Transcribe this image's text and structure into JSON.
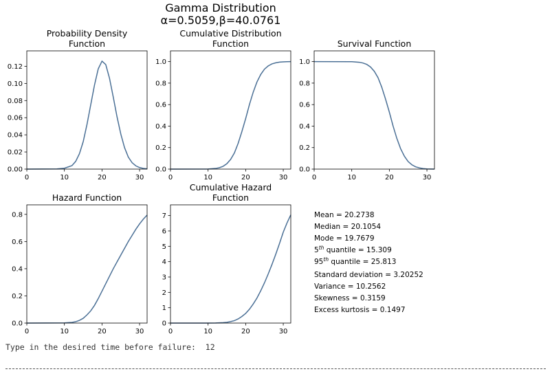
{
  "figure_title_line1": "Gamma Distribution",
  "figure_title_line2": "α=0.5059,β=40.0761",
  "line_color": "#4a6f95",
  "chart_data": [
    {
      "type": "line",
      "title": "Probability Density Function",
      "title_lines": [
        "Probability Density",
        "Function"
      ],
      "xlim": [
        0,
        32
      ],
      "ylim": [
        0,
        0.138
      ],
      "xticks": [
        0,
        10,
        20,
        30
      ],
      "yticks": [
        0.0,
        0.02,
        0.04,
        0.06,
        0.08,
        0.1,
        0.12
      ],
      "ytick_labels": [
        "0.00",
        "0.02",
        "0.04",
        "0.06",
        "0.08",
        "0.10",
        "0.12"
      ],
      "x": [
        0,
        8,
        10,
        12,
        13,
        14,
        15,
        16,
        17,
        18,
        19,
        20,
        21,
        22,
        23,
        24,
        25,
        26,
        27,
        28,
        29,
        30,
        31,
        32
      ],
      "y": [
        0,
        0.0002,
        0.001,
        0.004,
        0.009,
        0.018,
        0.032,
        0.052,
        0.075,
        0.098,
        0.117,
        0.126,
        0.122,
        0.106,
        0.084,
        0.061,
        0.041,
        0.025,
        0.014,
        0.0075,
        0.0038,
        0.0018,
        0.0008,
        0.0003
      ]
    },
    {
      "type": "line",
      "title": "Cumulative Distribution Function",
      "title_lines": [
        "Cumulative Distribution",
        "Function"
      ],
      "xlim": [
        0,
        32
      ],
      "ylim": [
        0,
        1.1
      ],
      "xticks": [
        0,
        10,
        20,
        30
      ],
      "yticks": [
        0.0,
        0.2,
        0.4,
        0.6,
        0.8,
        1.0
      ],
      "ytick_labels": [
        "0.0",
        "0.2",
        "0.4",
        "0.6",
        "0.8",
        "1.0"
      ],
      "x": [
        0,
        10,
        12,
        13,
        14,
        15,
        16,
        17,
        18,
        19,
        20,
        21,
        22,
        23,
        24,
        25,
        26,
        27,
        28,
        29,
        30,
        31,
        32
      ],
      "y": [
        0,
        0.001,
        0.006,
        0.013,
        0.026,
        0.05,
        0.09,
        0.15,
        0.24,
        0.35,
        0.47,
        0.6,
        0.715,
        0.81,
        0.88,
        0.93,
        0.96,
        0.979,
        0.989,
        0.995,
        0.998,
        0.999,
        1.0
      ]
    },
    {
      "type": "line",
      "title": "Survival Function",
      "title_lines": [
        "Survival Function"
      ],
      "xlim": [
        0,
        32
      ],
      "ylim": [
        0,
        1.1
      ],
      "xticks": [
        0,
        10,
        20,
        30
      ],
      "yticks": [
        0.0,
        0.2,
        0.4,
        0.6,
        0.8,
        1.0
      ],
      "ytick_labels": [
        "0.0",
        "0.2",
        "0.4",
        "0.6",
        "0.8",
        "1.0"
      ],
      "x": [
        0,
        10,
        12,
        13,
        14,
        15,
        16,
        17,
        18,
        19,
        20,
        21,
        22,
        23,
        24,
        25,
        26,
        27,
        28,
        29,
        30,
        31,
        32
      ],
      "y": [
        1,
        0.999,
        0.994,
        0.987,
        0.974,
        0.95,
        0.91,
        0.85,
        0.76,
        0.65,
        0.53,
        0.4,
        0.285,
        0.19,
        0.12,
        0.07,
        0.04,
        0.021,
        0.011,
        0.005,
        0.002,
        0.001,
        0.0
      ]
    },
    {
      "type": "line",
      "title": "Hazard Function",
      "title_lines": [
        "Hazard Function"
      ],
      "xlim": [
        0,
        32
      ],
      "ylim": [
        0,
        0.87
      ],
      "xticks": [
        0,
        10,
        20,
        30
      ],
      "yticks": [
        0.0,
        0.2,
        0.4,
        0.6,
        0.8
      ],
      "ytick_labels": [
        "0.0",
        "0.2",
        "0.4",
        "0.6",
        "0.8"
      ],
      "x": [
        0,
        10,
        12,
        13,
        14,
        15,
        16,
        17,
        18,
        19,
        20,
        21,
        22,
        23,
        24,
        25,
        26,
        27,
        28,
        29,
        30,
        31,
        32
      ],
      "y": [
        0,
        0.001,
        0.005,
        0.01,
        0.02,
        0.035,
        0.06,
        0.09,
        0.13,
        0.18,
        0.235,
        0.29,
        0.345,
        0.4,
        0.45,
        0.5,
        0.55,
        0.6,
        0.645,
        0.69,
        0.73,
        0.765,
        0.795
      ]
    },
    {
      "type": "line",
      "title": "Cumulative Hazard Function",
      "title_lines": [
        "Cumulative Hazard",
        "Function"
      ],
      "xlim": [
        0,
        32
      ],
      "ylim": [
        0,
        7.7
      ],
      "xticks": [
        0,
        10,
        20,
        30
      ],
      "yticks": [
        0,
        1,
        2,
        3,
        4,
        5,
        6,
        7
      ],
      "ytick_labels": [
        "0",
        "1",
        "2",
        "3",
        "4",
        "5",
        "6",
        "7"
      ],
      "x": [
        0,
        10,
        12,
        14,
        15,
        16,
        17,
        18,
        19,
        20,
        21,
        22,
        23,
        24,
        25,
        26,
        27,
        28,
        29,
        30,
        31,
        32
      ],
      "y": [
        0,
        0.001,
        0.006,
        0.026,
        0.05,
        0.095,
        0.16,
        0.27,
        0.43,
        0.63,
        0.9,
        1.24,
        1.63,
        2.1,
        2.62,
        3.2,
        3.82,
        4.48,
        5.18,
        5.92,
        6.52,
        7.05
      ]
    }
  ],
  "stats": [
    {
      "prefix": "Mean = 20.2738",
      "sup": "",
      "suffix": ""
    },
    {
      "prefix": "Median = 20.1054",
      "sup": "",
      "suffix": ""
    },
    {
      "prefix": "Mode = 19.7679",
      "sup": "",
      "suffix": ""
    },
    {
      "prefix": "5",
      "sup": "th",
      "suffix": " quantile = 15.309"
    },
    {
      "prefix": "95",
      "sup": "th",
      "suffix": " quantile = 25.813"
    },
    {
      "prefix": "Standard deviation = 3.20252",
      "sup": "",
      "suffix": ""
    },
    {
      "prefix": "Variance = 10.2562",
      "sup": "",
      "suffix": ""
    },
    {
      "prefix": "Skewness = 0.3159",
      "sup": "",
      "suffix": ""
    },
    {
      "prefix": "Excess kurtosis = 0.1497",
      "sup": "",
      "suffix": ""
    }
  ],
  "console_prompt": "Type in the desired time before failure:  12"
}
